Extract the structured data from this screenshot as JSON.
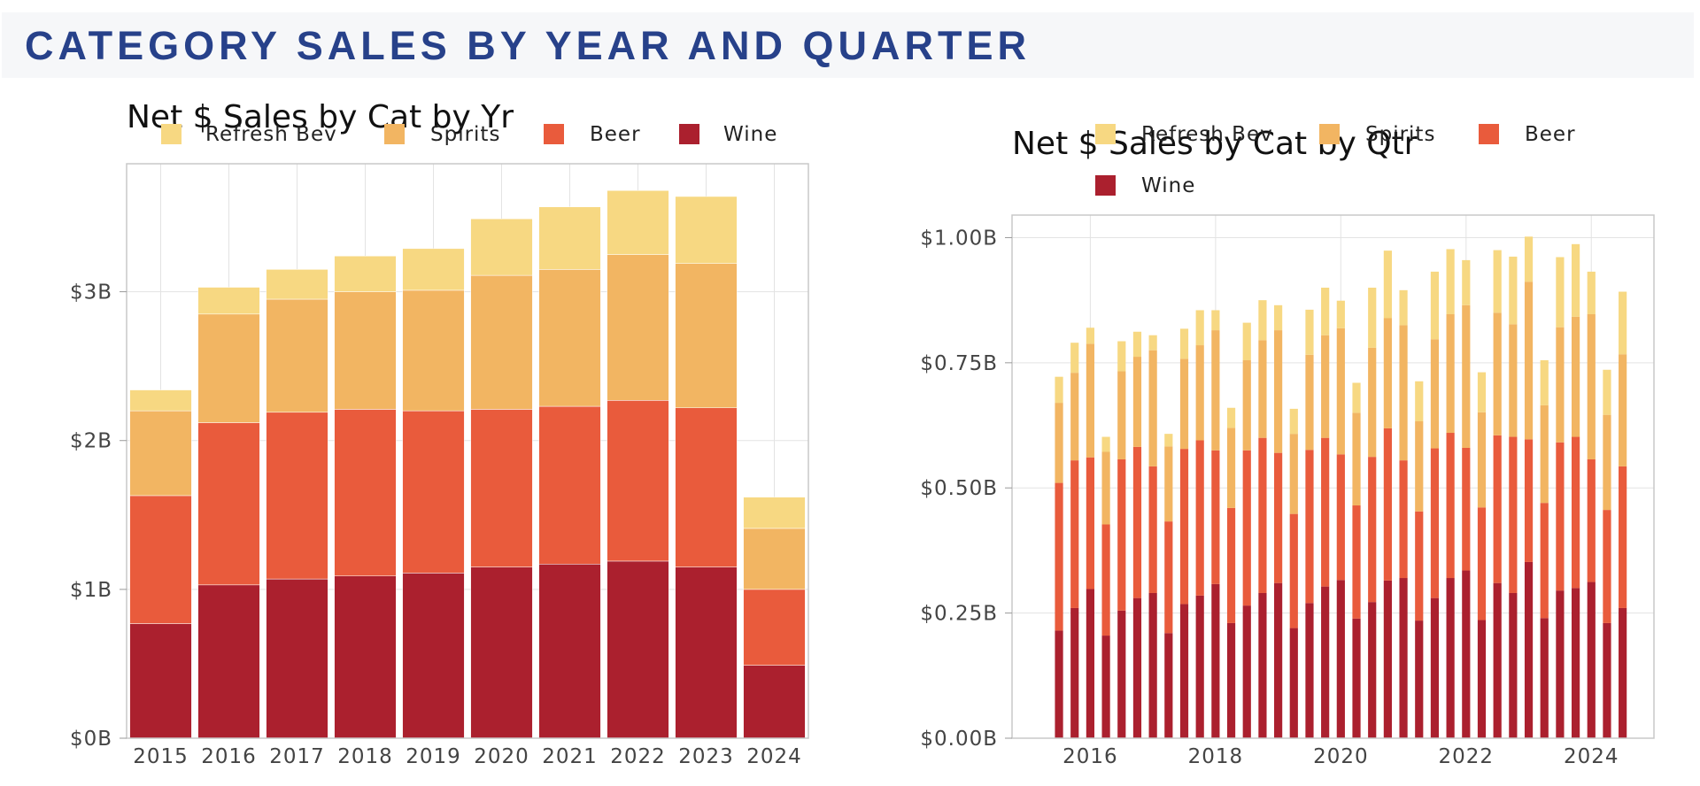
{
  "page": {
    "title": "CATEGORY SALES BY YEAR AND QUARTER"
  },
  "chart_data": [
    {
      "type": "bar",
      "stacked": true,
      "title": "Net $ Sales by Cat by Yr",
      "xlabel": "",
      "ylabel": "",
      "categories": [
        "2015",
        "2016",
        "2017",
        "2018",
        "2019",
        "2020",
        "2021",
        "2022",
        "2023",
        "2024"
      ],
      "ylim": [
        0,
        3.86
      ],
      "yticks": [
        "$0B",
        "$1B",
        "$2B",
        "$3B"
      ],
      "grid": true,
      "legend_position": "top",
      "legend_order": [
        "Refresh Bev",
        "Spirits",
        "Beer",
        "Wine"
      ],
      "series": [
        {
          "name": "Wine",
          "color": "#ab202e",
          "values": [
            0.77,
            1.03,
            1.07,
            1.09,
            1.11,
            1.15,
            1.17,
            1.19,
            1.15,
            0.49
          ]
        },
        {
          "name": "Beer",
          "color": "#e95b3c",
          "values": [
            0.86,
            1.09,
            1.12,
            1.12,
            1.09,
            1.06,
            1.06,
            1.08,
            1.07,
            0.51
          ]
        },
        {
          "name": "Spirits",
          "color": "#f2b562",
          "values": [
            0.57,
            0.73,
            0.76,
            0.79,
            0.81,
            0.9,
            0.92,
            0.98,
            0.97,
            0.41
          ]
        },
        {
          "name": "Refresh Bev",
          "color": "#f7d882",
          "values": [
            0.14,
            0.18,
            0.2,
            0.24,
            0.28,
            0.38,
            0.42,
            0.43,
            0.45,
            0.21
          ]
        }
      ]
    },
    {
      "type": "bar",
      "stacked": true,
      "title": "Net $ Sales by Cat by Qtr",
      "xlabel": "",
      "ylabel": "",
      "x_start_year": 2015.5,
      "x_step_years": 0.25,
      "xlim": [
        2014.75,
        2025.0
      ],
      "xticks": [
        "2016",
        "2018",
        "2020",
        "2022",
        "2024"
      ],
      "ylim": [
        0,
        1.045
      ],
      "yticks": [
        "$0.00B",
        "$0.25B",
        "$0.50B",
        "$0.75B",
        "$1.00B"
      ],
      "grid": true,
      "legend_position": "top",
      "legend_order": [
        "Refresh Bev",
        "Spirits",
        "Beer",
        "Wine"
      ],
      "series": [
        {
          "name": "Wine",
          "color": "#ab202e",
          "values": [
            0.215,
            0.26,
            0.298,
            0.205,
            0.255,
            0.28,
            0.29,
            0.21,
            0.268,
            0.285,
            0.308,
            0.23,
            0.265,
            0.29,
            0.31,
            0.22,
            0.27,
            0.303,
            0.316,
            0.239,
            0.272,
            0.315,
            0.32,
            0.235,
            0.28,
            0.32,
            0.335,
            0.236,
            0.31,
            0.29,
            0.352,
            0.24,
            0.295,
            0.3,
            0.312,
            0.23,
            0.26
          ]
        },
        {
          "name": "Beer",
          "color": "#e95b3c",
          "values": [
            0.295,
            0.295,
            0.263,
            0.222,
            0.302,
            0.302,
            0.253,
            0.223,
            0.31,
            0.31,
            0.267,
            0.23,
            0.31,
            0.31,
            0.26,
            0.228,
            0.306,
            0.297,
            0.251,
            0.226,
            0.29,
            0.304,
            0.235,
            0.218,
            0.299,
            0.29,
            0.245,
            0.225,
            0.295,
            0.312,
            0.245,
            0.23,
            0.296,
            0.302,
            0.245,
            0.226,
            0.283
          ]
        },
        {
          "name": "Spirits",
          "color": "#f2b562",
          "values": [
            0.16,
            0.175,
            0.227,
            0.145,
            0.176,
            0.18,
            0.232,
            0.15,
            0.18,
            0.19,
            0.24,
            0.16,
            0.18,
            0.195,
            0.245,
            0.16,
            0.19,
            0.205,
            0.252,
            0.185,
            0.218,
            0.22,
            0.27,
            0.18,
            0.218,
            0.237,
            0.285,
            0.19,
            0.245,
            0.225,
            0.315,
            0.195,
            0.23,
            0.24,
            0.29,
            0.19,
            0.224
          ]
        },
        {
          "name": "Refresh Bev",
          "color": "#f7d882",
          "values": [
            0.052,
            0.06,
            0.032,
            0.03,
            0.06,
            0.05,
            0.03,
            0.025,
            0.06,
            0.07,
            0.04,
            0.04,
            0.075,
            0.08,
            0.05,
            0.05,
            0.09,
            0.095,
            0.055,
            0.06,
            0.12,
            0.135,
            0.07,
            0.08,
            0.135,
            0.13,
            0.09,
            0.08,
            0.125,
            0.135,
            0.09,
            0.09,
            0.14,
            0.145,
            0.085,
            0.09,
            0.125
          ]
        }
      ]
    }
  ]
}
